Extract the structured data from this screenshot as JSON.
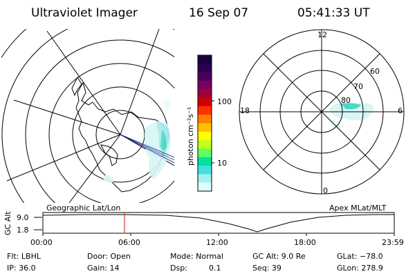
{
  "header": {
    "instrument": "Ultraviolet Imager",
    "date": "16 Sep 07",
    "time": "05:41:33 UT"
  },
  "colorbar": {
    "unit_label": "photon cm⁻²s⁻¹",
    "tick_labels": [
      "100",
      "10"
    ],
    "tick_values": [
      100,
      10
    ],
    "scale": "log",
    "colors_top_to_bottom": [
      "#1a0040",
      "#2b004f",
      "#4a0060",
      "#7a0060",
      "#a00040",
      "#d00000",
      "#ff3000",
      "#ff8000",
      "#ffc000",
      "#ffff00",
      "#c0ff20",
      "#60ff60",
      "#00e0a0",
      "#40e0e0",
      "#a0f0f0",
      "#e0ffff"
    ]
  },
  "geographic_map": {
    "label": "Geographic Lat/Lon",
    "projection": "polar, south pole centered"
  },
  "apex_map": {
    "label": "Apex MLat/MLT",
    "mlt_labels": {
      "top": "12",
      "bottom": "0",
      "left": "18",
      "right": "6"
    },
    "mlat_labels": [
      "80",
      "70",
      "60"
    ]
  },
  "timeline": {
    "ylabel": "GC Alt",
    "ytick_top": "9.0",
    "ytick_bottom": "1.8",
    "xticks": [
      "00:00",
      "06:00",
      "12:00",
      "18:00",
      "23:59"
    ],
    "marker_time": "05:41"
  },
  "info": {
    "flt": "Flt: LBHL",
    "ip": "IP: 36.0",
    "door": "Door: Open",
    "gain": "Gain: 14",
    "mode": "Mode: Normal",
    "dsp_label": "Dsp:",
    "dsp_value": "0.1",
    "gcalt": "GC Alt: 9.0 Re",
    "seq": "Seq: 39",
    "glat": "GLat: −78.0",
    "glon": "GLon: 278.9"
  },
  "colors": {
    "aurora": "#9ee8e8",
    "aurora_strong": "#40e0d0",
    "marker": "#e00000",
    "ray": "#2040c0"
  }
}
